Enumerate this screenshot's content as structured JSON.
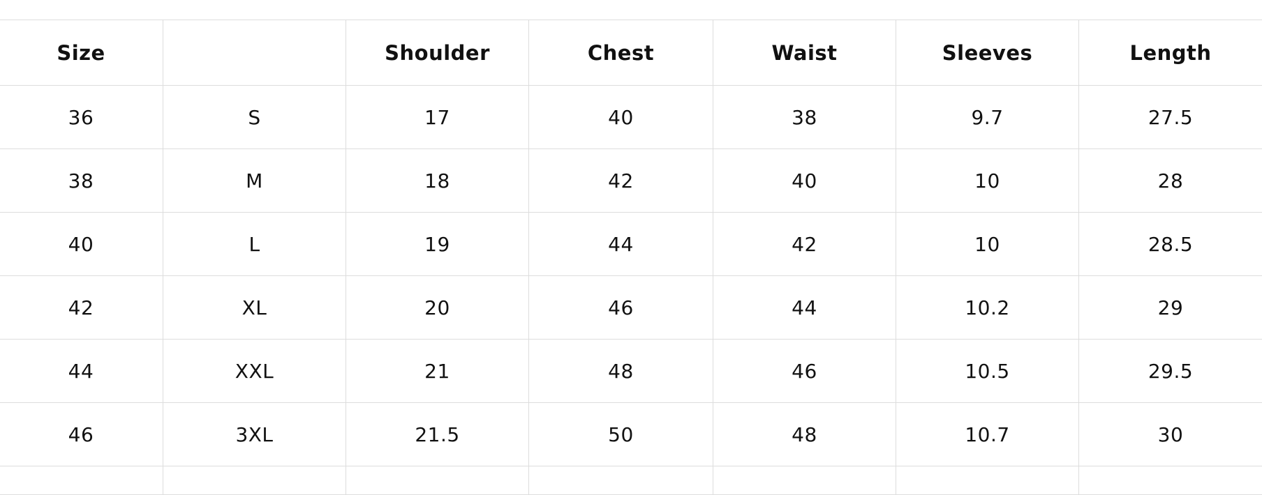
{
  "size_chart": {
    "headers": [
      "Size",
      "",
      "Shoulder",
      "Chest",
      "Waist",
      "Sleeves",
      "Length"
    ],
    "rows": [
      [
        "36",
        "S",
        "17",
        "40",
        "38",
        "9.7",
        "27.5"
      ],
      [
        "38",
        "M",
        "18",
        "42",
        "40",
        "10",
        "28"
      ],
      [
        "40",
        "L",
        "19",
        "44",
        "42",
        "10",
        "28.5"
      ],
      [
        "42",
        "XL",
        "20",
        "46",
        "44",
        "10.2",
        "29"
      ],
      [
        "44",
        "XXL",
        "21",
        "48",
        "46",
        "10.5",
        "29.5"
      ],
      [
        "46",
        "3XL",
        "21.5",
        "50",
        "48",
        "10.7",
        "30"
      ]
    ]
  }
}
